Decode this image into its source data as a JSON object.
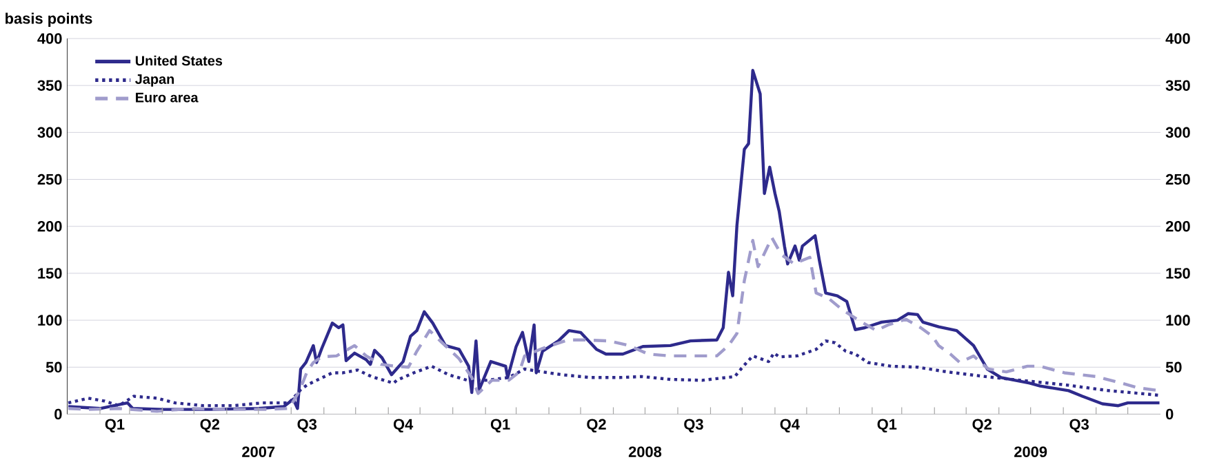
{
  "chart_data": {
    "type": "line",
    "ylabel": "basis points",
    "xlim": [
      "2007-01-01",
      "2009-11-01"
    ],
    "xticks": [
      {
        "value": "2007-02-15",
        "label": "Q1"
      },
      {
        "value": "2007-05-16",
        "label": "Q2"
      },
      {
        "value": "2007-08-16",
        "label": "Q3"
      },
      {
        "value": "2007-11-15",
        "label": "Q4"
      },
      {
        "value": "2008-02-15",
        "label": "Q1"
      },
      {
        "value": "2008-05-16",
        "label": "Q2"
      },
      {
        "value": "2008-08-16",
        "label": "Q3"
      },
      {
        "value": "2008-11-15",
        "label": "Q4"
      },
      {
        "value": "2009-02-15",
        "label": "Q1"
      },
      {
        "value": "2009-05-16",
        "label": "Q2"
      },
      {
        "value": "2009-08-16",
        "label": "Q3"
      },
      {
        "value": "2007-02-01",
        "label": null
      },
      {
        "value": "2007-03-01",
        "label": null
      },
      {
        "value": "2007-04-01",
        "label": null
      },
      {
        "value": "2007-05-01",
        "label": null
      },
      {
        "value": "2007-06-01",
        "label": null
      },
      {
        "value": "2007-07-01",
        "label": null
      },
      {
        "value": "2007-08-01",
        "label": null
      },
      {
        "value": "2007-09-01",
        "label": null
      },
      {
        "value": "2007-10-01",
        "label": null
      },
      {
        "value": "2007-11-01",
        "label": null
      },
      {
        "value": "2007-12-01",
        "label": null
      },
      {
        "value": "2008-01-01",
        "label": null
      },
      {
        "value": "2008-02-01",
        "label": null
      },
      {
        "value": "2008-03-01",
        "label": null
      },
      {
        "value": "2008-04-01",
        "label": null
      },
      {
        "value": "2008-05-01",
        "label": null
      },
      {
        "value": "2008-06-01",
        "label": null
      },
      {
        "value": "2008-07-01",
        "label": null
      },
      {
        "value": "2008-08-01",
        "label": null
      },
      {
        "value": "2008-09-01",
        "label": null
      },
      {
        "value": "2008-10-01",
        "label": null
      },
      {
        "value": "2008-11-01",
        "label": null
      },
      {
        "value": "2008-12-01",
        "label": null
      },
      {
        "value": "2009-01-01",
        "label": null
      },
      {
        "value": "2009-02-01",
        "label": null
      },
      {
        "value": "2009-03-01",
        "label": null
      },
      {
        "value": "2009-04-01",
        "label": null
      },
      {
        "value": "2009-05-01",
        "label": null
      },
      {
        "value": "2009-06-01",
        "label": null
      },
      {
        "value": "2009-07-01",
        "label": null
      },
      {
        "value": "2009-08-01",
        "label": null
      },
      {
        "value": "2009-09-01",
        "label": null
      },
      {
        "value": "2009-10-01",
        "label": null
      }
    ],
    "ylim": [
      0,
      400
    ],
    "yticks": [
      0,
      50,
      100,
      150,
      200,
      250,
      300,
      350,
      400
    ],
    "y2lim": [
      0,
      400
    ],
    "y2ticks": [
      0,
      50,
      100,
      150,
      200,
      250,
      300,
      350,
      400
    ],
    "annotations": [
      "2007",
      "2008",
      "2009"
    ],
    "grid": "y",
    "legend": "top left",
    "marker": "none",
    "series": [
      {
        "name": "United States",
        "color": "#2e2a8c",
        "line_style": "solid",
        "x": [
          "2007-01-02",
          "2007-02-01",
          "2007-02-27",
          "2007-03-04",
          "2007-04-01",
          "2007-05-16",
          "2007-07-01",
          "2007-07-25",
          "2007-08-03",
          "2007-08-07",
          "2007-08-10",
          "2007-08-15",
          "2007-08-22",
          "2007-08-25",
          "2007-08-30",
          "2007-09-09",
          "2007-09-15",
          "2007-09-19",
          "2007-09-22",
          "2007-09-30",
          "2007-10-11",
          "2007-10-15",
          "2007-10-19",
          "2007-10-26",
          "2007-11-04",
          "2007-11-15",
          "2007-11-22",
          "2007-11-28",
          "2007-12-05",
          "2007-12-13",
          "2007-12-25",
          "2008-01-07",
          "2008-01-16",
          "2008-01-19",
          "2008-01-23",
          "2008-01-26",
          "2008-02-06",
          "2008-02-20",
          "2008-02-22",
          "2008-03-01",
          "2008-03-07",
          "2008-03-13",
          "2008-03-18",
          "2008-03-20",
          "2008-03-26",
          "2008-04-10",
          "2008-04-20",
          "2008-05-01",
          "2008-05-16",
          "2008-05-25",
          "2008-06-10",
          "2008-06-29",
          "2008-07-25",
          "2008-08-13",
          "2008-09-07",
          "2008-09-13",
          "2008-09-18",
          "2008-09-22",
          "2008-09-26",
          "2008-10-03",
          "2008-10-07",
          "2008-10-11",
          "2008-10-18",
          "2008-10-22",
          "2008-10-27",
          "2008-11-01",
          "2008-11-05",
          "2008-11-10",
          "2008-11-13",
          "2008-11-20",
          "2008-11-24",
          "2008-11-27",
          "2008-12-09",
          "2008-12-13",
          "2008-12-19",
          "2008-12-30",
          "2009-01-08",
          "2009-01-16",
          "2009-01-25",
          "2009-02-10",
          "2009-02-25",
          "2009-03-07",
          "2009-03-16",
          "2009-03-21",
          "2009-04-05",
          "2009-04-22",
          "2009-05-08",
          "2009-05-21",
          "2009-06-03",
          "2009-06-30",
          "2009-07-10",
          "2009-08-06",
          "2009-08-19",
          "2009-09-07",
          "2009-09-22",
          "2009-10-01",
          "2009-10-31"
        ],
        "values": [
          8,
          6,
          12,
          6,
          5,
          5,
          6,
          8,
          16,
          6,
          48,
          55,
          73,
          55,
          70,
          97,
          92,
          95,
          57,
          65,
          58,
          53,
          68,
          60,
          42,
          56,
          83,
          89,
          109,
          97,
          73,
          69,
          51,
          23,
          78,
          26,
          56,
          51,
          39,
          72,
          87,
          56,
          95,
          44,
          67,
          78,
          89,
          87,
          69,
          64,
          64,
          72,
          73,
          78,
          79,
          92,
          151,
          126,
          201,
          282,
          288,
          366,
          341,
          235,
          263,
          235,
          216,
          179,
          160,
          179,
          164,
          179,
          190,
          164,
          129,
          126,
          120,
          90,
          92,
          98,
          100,
          107,
          106,
          98,
          93,
          89,
          73,
          48,
          39,
          33,
          30,
          25,
          19,
          11,
          9,
          12,
          12
        ]
      },
      {
        "name": "Japan",
        "color": "#2e2a8c",
        "line_style": "dotted",
        "x": [
          "2007-01-02",
          "2007-01-21",
          "2007-02-05",
          "2007-02-19",
          "2007-03-05",
          "2007-03-27",
          "2007-04-13",
          "2007-05-10",
          "2007-06-07",
          "2007-07-05",
          "2007-07-30",
          "2007-08-10",
          "2007-08-16",
          "2007-08-27",
          "2007-09-09",
          "2007-09-19",
          "2007-10-03",
          "2007-10-16",
          "2007-10-28",
          "2007-11-06",
          "2007-11-09",
          "2007-11-25",
          "2007-12-12",
          "2007-12-28",
          "2008-01-15",
          "2008-02-01",
          "2008-02-23",
          "2008-03-09",
          "2008-03-26",
          "2008-04-13",
          "2008-05-10",
          "2008-06-07",
          "2008-06-28",
          "2008-07-25",
          "2008-08-24",
          "2008-09-24",
          "2008-10-02",
          "2008-10-11",
          "2008-10-26",
          "2008-10-31",
          "2008-11-05",
          "2008-11-22",
          "2008-12-10",
          "2008-12-19",
          "2008-12-28",
          "2009-01-07",
          "2009-01-16",
          "2009-01-28",
          "2009-02-19",
          "2009-03-16",
          "2009-04-13",
          "2009-05-19",
          "2009-06-22",
          "2009-08-04",
          "2009-09-13",
          "2009-10-13",
          "2009-10-31"
        ],
        "values": [
          12,
          17,
          14,
          9,
          19,
          17,
          12,
          9,
          9,
          12,
          12,
          26,
          31,
          37,
          44,
          44,
          47,
          40,
          36,
          33,
          36,
          44,
          51,
          42,
          36,
          36,
          39,
          48,
          45,
          42,
          39,
          39,
          40,
          37,
          36,
          40,
          51,
          62,
          56,
          65,
          61,
          62,
          69,
          78,
          76,
          67,
          64,
          55,
          51,
          50,
          45,
          40,
          36,
          31,
          25,
          22,
          20
        ]
      },
      {
        "name": "Euro area",
        "color": "#a09ccc",
        "line_style": "dashed",
        "x": [
          "2007-01-02",
          "2007-01-21",
          "2007-02-19",
          "2007-03-27",
          "2007-04-28",
          "2007-06-07",
          "2007-07-05",
          "2007-07-30",
          "2007-08-09",
          "2007-08-16",
          "2007-08-22",
          "2007-08-30",
          "2007-09-13",
          "2007-09-30",
          "2007-10-11",
          "2007-10-25",
          "2007-11-08",
          "2007-11-20",
          "2007-11-28",
          "2007-12-10",
          "2007-12-22",
          "2008-01-07",
          "2008-01-19",
          "2008-01-25",
          "2008-02-07",
          "2008-02-23",
          "2008-03-04",
          "2008-03-09",
          "2008-03-26",
          "2008-04-19",
          "2008-05-04",
          "2008-05-28",
          "2008-06-16",
          "2008-07-04",
          "2008-07-25",
          "2008-08-24",
          "2008-09-07",
          "2008-09-18",
          "2008-09-26",
          "2008-10-03",
          "2008-10-11",
          "2008-10-16",
          "2008-10-24",
          "2008-10-29",
          "2008-11-07",
          "2008-11-19",
          "2008-12-04",
          "2008-12-10",
          "2008-12-22",
          "2009-01-04",
          "2009-01-22",
          "2009-02-05",
          "2009-02-16",
          "2009-03-05",
          "2009-03-19",
          "2009-03-30",
          "2009-04-05",
          "2009-04-16",
          "2009-04-25",
          "2009-05-08",
          "2009-05-22",
          "2009-06-08",
          "2009-06-28",
          "2009-07-10",
          "2009-08-02",
          "2009-09-01",
          "2009-09-22",
          "2009-10-11",
          "2009-10-31"
        ],
        "values": [
          6,
          5,
          6,
          3,
          6,
          5,
          5,
          6,
          25,
          45,
          55,
          61,
          62,
          73,
          62,
          53,
          51,
          50,
          67,
          89,
          76,
          59,
          39,
          22,
          36,
          36,
          45,
          62,
          70,
          79,
          79,
          78,
          73,
          64,
          62,
          62,
          62,
          73,
          86,
          142,
          185,
          157,
          176,
          188,
          170,
          160,
          167,
          129,
          123,
          111,
          98,
          89,
          95,
          101,
          92,
          83,
          73,
          64,
          55,
          62,
          48,
          45,
          51,
          51,
          44,
          40,
          34,
          28,
          25
        ]
      }
    ]
  }
}
